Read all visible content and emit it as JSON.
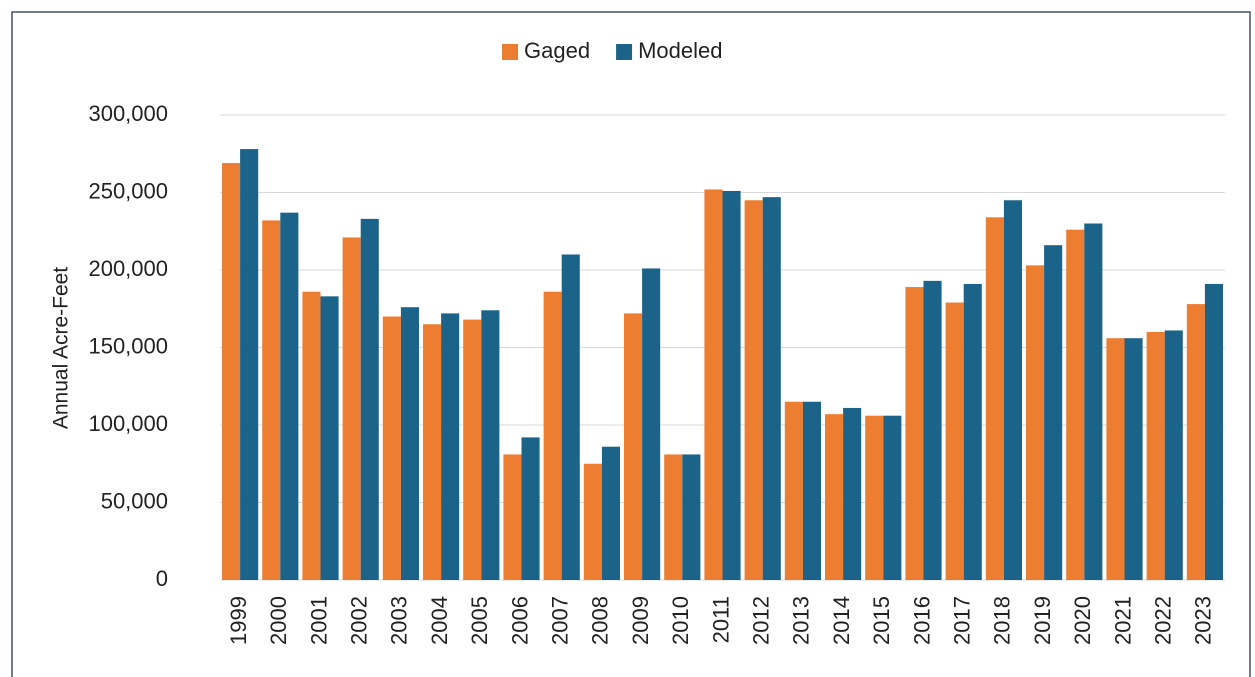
{
  "chart_data": {
    "type": "bar",
    "y_label": "Annual Acre-Feet",
    "categories": [
      "1999",
      "2000",
      "2001",
      "2002",
      "2003",
      "2004",
      "2005",
      "2006",
      "2007",
      "2008",
      "2009",
      "2010",
      "2011",
      "2012",
      "2013",
      "2014",
      "2015",
      "2016",
      "2017",
      "2018",
      "2019",
      "2020",
      "2021",
      "2022",
      "2023"
    ],
    "series": [
      {
        "name": "Gaged",
        "color": "#ed7d31",
        "values": [
          269000,
          232000,
          186000,
          221000,
          170000,
          165000,
          168000,
          81000,
          186000,
          75000,
          172000,
          81000,
          252000,
          245000,
          115000,
          107000,
          106000,
          189000,
          179000,
          234000,
          203000,
          226000,
          156000,
          160000,
          178000
        ]
      },
      {
        "name": "Modeled",
        "color": "#1b6388",
        "values": [
          278000,
          237000,
          183000,
          233000,
          176000,
          172000,
          174000,
          92000,
          210000,
          86000,
          201000,
          81000,
          251000,
          247000,
          115000,
          111000,
          106000,
          193000,
          191000,
          245000,
          216000,
          230000,
          156000,
          161000,
          191000
        ]
      }
    ],
    "ylim": [
      0,
      300000
    ],
    "yticks": [
      0,
      {
        "value": 50000,
        "label": "50,000"
      },
      {
        "value": 100000,
        "label": "100,000"
      },
      {
        "value": 150000,
        "label": "150,000"
      },
      {
        "value": 200000,
        "label": "200,000"
      },
      {
        "value": 250000,
        "label": "250,000"
      },
      {
        "value": 300000,
        "label": "300,000"
      }
    ],
    "grid": true,
    "legend": "top"
  }
}
